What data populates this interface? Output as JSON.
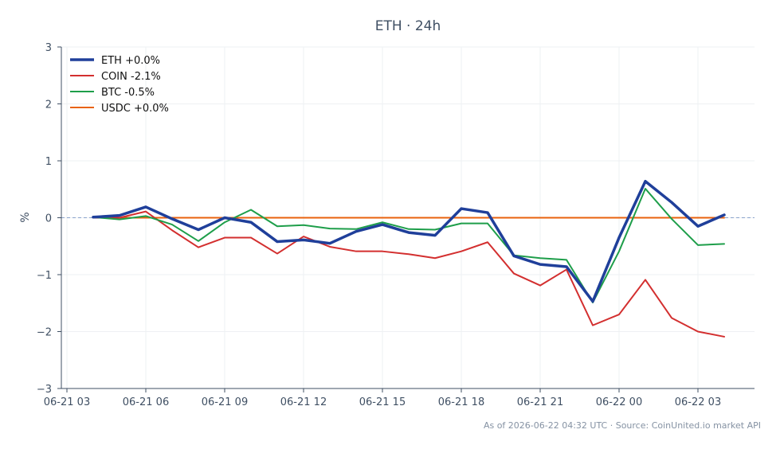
{
  "title": "ETH · 24h",
  "footer": "As of 2026-06-22 04:32 UTC · Source: CoinUnited.io market API",
  "chart_data": {
    "type": "line",
    "title": "ETH · 24h",
    "xlabel": "",
    "ylabel": "%",
    "ylim": [
      -3,
      3
    ],
    "yticks": [
      "3",
      "2",
      "1",
      "0",
      "−1",
      "−2",
      "−3"
    ],
    "xticks": [
      "06-21 03",
      "06-21 06",
      "06-21 09",
      "06-21 12",
      "06-21 15",
      "06-21 18",
      "06-21 21",
      "06-22 00",
      "06-22 03"
    ],
    "grid": true,
    "legend_position": "top-left",
    "baseline_y": 0,
    "x": [
      "06-21 04",
      "06-21 05",
      "06-21 06",
      "06-21 07",
      "06-21 08",
      "06-21 09",
      "06-21 10",
      "06-21 11",
      "06-21 12",
      "06-21 13",
      "06-21 14",
      "06-21 15",
      "06-21 16",
      "06-21 17",
      "06-21 18",
      "06-21 19",
      "06-21 20",
      "06-21 21",
      "06-21 22",
      "06-21 23",
      "06-22 00",
      "06-22 01",
      "06-22 02",
      "06-22 03",
      "06-22 04"
    ],
    "series": [
      {
        "name": "ETH +0.0%",
        "color": "#1f3f9a",
        "width": 3.5,
        "values": [
          0.01,
          0.04,
          0.19,
          -0.02,
          -0.21,
          0.0,
          -0.08,
          -0.42,
          -0.39,
          -0.45,
          -0.24,
          -0.12,
          -0.26,
          -0.31,
          0.16,
          0.09,
          -0.67,
          -0.82,
          -0.86,
          -1.47,
          -0.35,
          0.64,
          0.27,
          -0.15,
          0.05
        ]
      },
      {
        "name": "COIN -2.1%",
        "color": "#d32f2f",
        "width": 2,
        "values": [
          0.0,
          0.0,
          0.11,
          -0.22,
          -0.52,
          -0.35,
          -0.35,
          -0.63,
          -0.33,
          -0.51,
          -0.59,
          -0.59,
          -0.64,
          -0.71,
          -0.59,
          -0.43,
          -0.98,
          -1.19,
          -0.91,
          -1.89,
          -1.7,
          -1.09,
          -1.76,
          -2.0,
          -2.09
        ]
      },
      {
        "name": "BTC -0.5%",
        "color": "#1e9e4a",
        "width": 2,
        "values": [
          0.01,
          -0.03,
          0.03,
          -0.12,
          -0.41,
          -0.08,
          0.14,
          -0.15,
          -0.13,
          -0.19,
          -0.2,
          -0.08,
          -0.2,
          -0.21,
          -0.1,
          -0.1,
          -0.66,
          -0.71,
          -0.74,
          -1.49,
          -0.59,
          0.51,
          -0.02,
          -0.48,
          -0.46
        ]
      },
      {
        "name": "USDC +0.0%",
        "color": "#e8620e",
        "width": 2,
        "values": [
          0.0,
          0.0,
          0.0,
          0.0,
          0.0,
          0.0,
          0.0,
          0.0,
          0.0,
          0.0,
          0.0,
          0.0,
          0.0,
          0.0,
          0.0,
          0.0,
          0.0,
          0.0,
          0.0,
          0.0,
          0.0,
          0.0,
          0.0,
          0.0,
          0.0
        ]
      }
    ]
  }
}
